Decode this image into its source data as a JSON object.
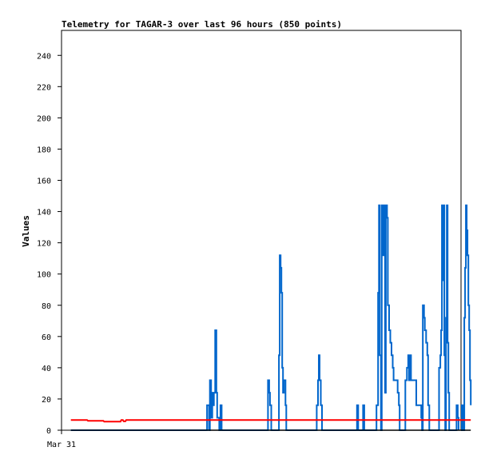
{
  "chart_data": {
    "type": "line",
    "title": "Telemetry for TAGAR-3 over last 96 hours (850 points)",
    "xlabel": "",
    "ylabel": "Values",
    "x_tick_labels": [
      "Mar 31"
    ],
    "y_ticks": [
      0,
      20,
      40,
      60,
      80,
      100,
      120,
      140,
      160,
      180,
      200,
      220,
      240
    ],
    "ylim": [
      0,
      256
    ],
    "xlim_hours": [
      -2.3,
      96
    ],
    "grid": false,
    "legend": "none",
    "series": [
      {
        "color": "#0066cc",
        "kind": "step",
        "points": [
          [
            0,
            0
          ],
          [
            33.5,
            0
          ],
          [
            33.5,
            16
          ],
          [
            34.0,
            16
          ],
          [
            34.0,
            0
          ],
          [
            34.2,
            0
          ],
          [
            34.2,
            32
          ],
          [
            34.5,
            32
          ],
          [
            34.5,
            8
          ],
          [
            34.8,
            8
          ],
          [
            34.8,
            24
          ],
          [
            35.0,
            24
          ],
          [
            35.0,
            16
          ],
          [
            35.2,
            16
          ],
          [
            35.2,
            24
          ],
          [
            35.5,
            24
          ],
          [
            35.5,
            64
          ],
          [
            35.8,
            64
          ],
          [
            35.8,
            24
          ],
          [
            36.0,
            24
          ],
          [
            36.0,
            8
          ],
          [
            36.5,
            8
          ],
          [
            36.5,
            0
          ],
          [
            36.8,
            0
          ],
          [
            36.8,
            16
          ],
          [
            37.1,
            16
          ],
          [
            37.1,
            0
          ],
          [
            48.5,
            0
          ],
          [
            48.5,
            32
          ],
          [
            48.8,
            32
          ],
          [
            48.8,
            24
          ],
          [
            49.0,
            24
          ],
          [
            49.0,
            16
          ],
          [
            49.3,
            16
          ],
          [
            49.3,
            0
          ],
          [
            51.2,
            0
          ],
          [
            51.2,
            48
          ],
          [
            51.4,
            48
          ],
          [
            51.4,
            112
          ],
          [
            51.6,
            112
          ],
          [
            51.6,
            104
          ],
          [
            51.8,
            104
          ],
          [
            51.8,
            88
          ],
          [
            52.0,
            88
          ],
          [
            52.0,
            40
          ],
          [
            52.2,
            40
          ],
          [
            52.2,
            24
          ],
          [
            52.4,
            24
          ],
          [
            52.4,
            32
          ],
          [
            52.8,
            32
          ],
          [
            52.8,
            16
          ],
          [
            53.0,
            16
          ],
          [
            53.0,
            0
          ],
          [
            60.5,
            0
          ],
          [
            60.5,
            16
          ],
          [
            60.8,
            16
          ],
          [
            60.8,
            32
          ],
          [
            61.0,
            32
          ],
          [
            61.0,
            48
          ],
          [
            61.2,
            48
          ],
          [
            61.2,
            32
          ],
          [
            61.5,
            32
          ],
          [
            61.5,
            16
          ],
          [
            61.8,
            16
          ],
          [
            61.8,
            0
          ],
          [
            70.4,
            0
          ],
          [
            70.4,
            16
          ],
          [
            70.7,
            16
          ],
          [
            70.7,
            0
          ],
          [
            71.9,
            0
          ],
          [
            71.9,
            16
          ],
          [
            72.2,
            16
          ],
          [
            72.2,
            0
          ],
          [
            75.2,
            0
          ],
          [
            75.2,
            16
          ],
          [
            75.6,
            16
          ],
          [
            75.6,
            88
          ],
          [
            75.8,
            88
          ],
          [
            75.8,
            144
          ],
          [
            76.0,
            144
          ],
          [
            76.0,
            48
          ],
          [
            76.3,
            48
          ],
          [
            76.3,
            0
          ],
          [
            76.5,
            0
          ],
          [
            76.5,
            144
          ],
          [
            76.8,
            144
          ],
          [
            76.8,
            112
          ],
          [
            77.0,
            112
          ],
          [
            77.0,
            144
          ],
          [
            77.3,
            144
          ],
          [
            77.3,
            24
          ],
          [
            77.5,
            24
          ],
          [
            77.5,
            144
          ],
          [
            77.8,
            144
          ],
          [
            77.8,
            136
          ],
          [
            78.0,
            136
          ],
          [
            78.0,
            80
          ],
          [
            78.3,
            80
          ],
          [
            78.3,
            64
          ],
          [
            78.6,
            64
          ],
          [
            78.6,
            56
          ],
          [
            78.9,
            56
          ],
          [
            78.9,
            48
          ],
          [
            79.2,
            48
          ],
          [
            79.2,
            40
          ],
          [
            79.4,
            40
          ],
          [
            79.4,
            32
          ],
          [
            80.4,
            32
          ],
          [
            80.4,
            24
          ],
          [
            80.7,
            24
          ],
          [
            80.7,
            16
          ],
          [
            80.9,
            16
          ],
          [
            80.9,
            0
          ],
          [
            82.3,
            0
          ],
          [
            82.3,
            32
          ],
          [
            82.7,
            32
          ],
          [
            82.7,
            40
          ],
          [
            83.0,
            40
          ],
          [
            83.0,
            48
          ],
          [
            83.2,
            48
          ],
          [
            83.2,
            32
          ],
          [
            83.5,
            32
          ],
          [
            83.5,
            48
          ],
          [
            83.7,
            48
          ],
          [
            83.7,
            32
          ],
          [
            85.0,
            32
          ],
          [
            85.0,
            16
          ],
          [
            86.2,
            16
          ],
          [
            86.2,
            8
          ],
          [
            86.4,
            8
          ],
          [
            86.4,
            0
          ],
          [
            86.6,
            0
          ],
          [
            86.6,
            80
          ],
          [
            86.9,
            80
          ],
          [
            86.9,
            72
          ],
          [
            87.1,
            72
          ],
          [
            87.1,
            64
          ],
          [
            87.4,
            64
          ],
          [
            87.4,
            56
          ],
          [
            87.7,
            56
          ],
          [
            87.7,
            48
          ],
          [
            87.9,
            48
          ],
          [
            87.9,
            16
          ],
          [
            88.2,
            16
          ],
          [
            88.2,
            0
          ],
          [
            90.6,
            0
          ],
          [
            90.6,
            40
          ],
          [
            90.9,
            40
          ],
          [
            90.9,
            48
          ],
          [
            91.1,
            48
          ],
          [
            91.1,
            64
          ],
          [
            91.3,
            64
          ],
          [
            91.3,
            144
          ],
          [
            91.5,
            144
          ],
          [
            91.5,
            96
          ],
          [
            91.7,
            96
          ],
          [
            91.7,
            144
          ],
          [
            91.9,
            144
          ],
          [
            91.9,
            48
          ],
          [
            92.1,
            48
          ],
          [
            92.1,
            0
          ],
          [
            92.3,
            0
          ],
          [
            92.3,
            72
          ],
          [
            92.5,
            72
          ],
          [
            92.5,
            144
          ],
          [
            92.7,
            144
          ],
          [
            92.7,
            56
          ],
          [
            92.9,
            56
          ],
          [
            92.9,
            24
          ],
          [
            93.1,
            24
          ],
          [
            93.1,
            0
          ],
          [
            94.9,
            0
          ],
          [
            94.9,
            16
          ],
          [
            95.2,
            16
          ],
          [
            95.2,
            8
          ],
          [
            95.4,
            8
          ],
          [
            95.4,
            0
          ]
        ]
      },
      {
        "color": "#0066cc",
        "kind": "step",
        "points": [
          [
            96.0,
            0
          ],
          [
            96.2,
            0
          ],
          [
            96.2,
            16
          ],
          [
            96.5,
            16
          ],
          [
            96.5,
            0
          ],
          [
            96.8,
            0
          ],
          [
            96.8,
            72
          ],
          [
            97.0,
            72
          ],
          [
            97.0,
            104
          ],
          [
            97.2,
            104
          ],
          [
            97.2,
            144
          ],
          [
            97.4,
            144
          ],
          [
            97.4,
            128
          ],
          [
            97.6,
            128
          ],
          [
            97.6,
            112
          ],
          [
            97.8,
            112
          ],
          [
            97.8,
            80
          ],
          [
            98.0,
            80
          ],
          [
            98.0,
            64
          ],
          [
            98.2,
            64
          ],
          [
            98.2,
            32
          ],
          [
            98.4,
            32
          ],
          [
            98.4,
            16
          ]
        ]
      },
      {
        "color": "#ff0000",
        "kind": "line",
        "points": [
          [
            0,
            6.5
          ],
          [
            4.0,
            6.5
          ],
          [
            4.2,
            6
          ],
          [
            8.0,
            6
          ],
          [
            8.2,
            5.5
          ],
          [
            12.2,
            5.5
          ],
          [
            12.4,
            6.5
          ],
          [
            12.8,
            6.5
          ],
          [
            13.0,
            5.7
          ],
          [
            13.4,
            5.7
          ],
          [
            13.6,
            6.5
          ],
          [
            98.4,
            6.5
          ]
        ]
      },
      {
        "color": "#000000",
        "kind": "line",
        "points": [
          [
            0,
            0
          ],
          [
            98.4,
            0
          ]
        ]
      }
    ]
  }
}
